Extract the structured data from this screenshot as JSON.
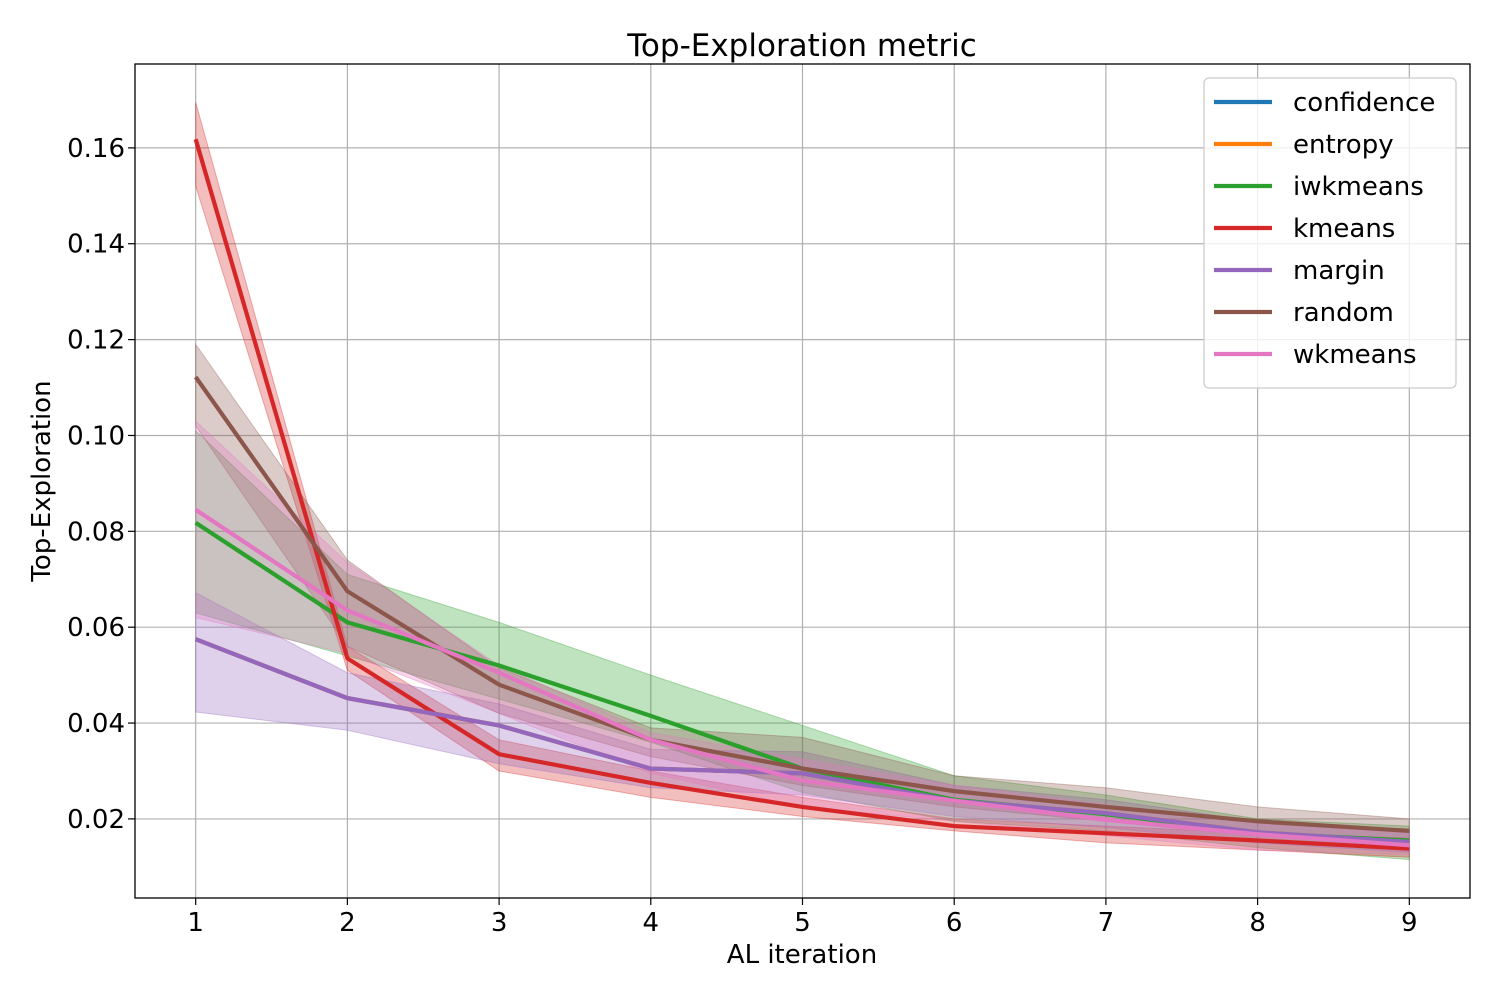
{
  "chart_data": {
    "type": "line",
    "title": "Top-Exploration metric",
    "xlabel": "AL iteration",
    "ylabel": "Top-Exploration",
    "x": [
      1,
      2,
      3,
      4,
      5,
      6,
      7,
      8,
      9
    ],
    "xticks": [
      "1",
      "2",
      "3",
      "4",
      "5",
      "6",
      "7",
      "8",
      "9"
    ],
    "yticks": [
      "0.02",
      "0.04",
      "0.06",
      "0.08",
      "0.10",
      "0.12",
      "0.14",
      "0.16"
    ],
    "xlim": [
      0.6,
      9.4
    ],
    "ylim": [
      0.0035,
      0.1775
    ],
    "grid": true,
    "legend_position": "top-right",
    "series": [
      {
        "name": "confidence",
        "color": "#1f77b4",
        "values": [
          0.0575,
          0.0452,
          0.0395,
          0.0305,
          0.0295,
          0.0238,
          0.0212,
          0.0172,
          0.0152
        ],
        "lower": [
          0.0423,
          0.0385,
          0.0315,
          0.0265,
          0.025,
          0.0205,
          0.0182,
          0.015,
          0.013
        ],
        "upper": [
          0.0672,
          0.0505,
          0.044,
          0.0345,
          0.034,
          0.027,
          0.024,
          0.0195,
          0.0175
        ],
        "band_opacity": 0.0
      },
      {
        "name": "entropy",
        "color": "#ff7f0e",
        "values": [
          0.0575,
          0.0452,
          0.0395,
          0.0305,
          0.0295,
          0.0238,
          0.0212,
          0.0172,
          0.0152
        ],
        "lower": [
          0.0423,
          0.0385,
          0.0315,
          0.0265,
          0.025,
          0.0205,
          0.0182,
          0.015,
          0.013
        ],
        "upper": [
          0.0672,
          0.0505,
          0.044,
          0.0345,
          0.034,
          0.027,
          0.024,
          0.0195,
          0.0175
        ],
        "band_opacity": 0.0
      },
      {
        "name": "iwkmeans",
        "color": "#2ca02c",
        "values": [
          0.0818,
          0.061,
          0.052,
          0.0415,
          0.0305,
          0.024,
          0.021,
          0.017,
          0.0155
        ],
        "lower": [
          0.063,
          0.054,
          0.045,
          0.036,
          0.0255,
          0.0195,
          0.0175,
          0.014,
          0.0115
        ],
        "upper": [
          0.101,
          0.071,
          0.061,
          0.05,
          0.0395,
          0.029,
          0.025,
          0.02,
          0.0185
        ],
        "band_opacity": 0.3
      },
      {
        "name": "kmeans",
        "color": "#d62728",
        "values": [
          0.1618,
          0.0535,
          0.0335,
          0.0275,
          0.0225,
          0.0185,
          0.017,
          0.0155,
          0.0138
        ],
        "lower": [
          0.152,
          0.051,
          0.03,
          0.0245,
          0.0205,
          0.0175,
          0.015,
          0.0135,
          0.012
        ],
        "upper": [
          0.1695,
          0.056,
          0.0365,
          0.03,
          0.0245,
          0.02,
          0.0185,
          0.017,
          0.016
        ],
        "band_opacity": 0.3
      },
      {
        "name": "margin",
        "color": "#9467bd",
        "values": [
          0.0575,
          0.0452,
          0.0395,
          0.0305,
          0.0295,
          0.0238,
          0.0212,
          0.0172,
          0.0152
        ],
        "lower": [
          0.0423,
          0.0385,
          0.0315,
          0.0265,
          0.025,
          0.0205,
          0.0182,
          0.015,
          0.013
        ],
        "upper": [
          0.0672,
          0.0505,
          0.044,
          0.0345,
          0.034,
          0.027,
          0.024,
          0.0195,
          0.0175
        ],
        "band_opacity": 0.3
      },
      {
        "name": "random",
        "color": "#8c564b",
        "values": [
          0.1122,
          0.0675,
          0.048,
          0.0365,
          0.0305,
          0.0258,
          0.0225,
          0.0195,
          0.0175
        ],
        "lower": [
          0.102,
          0.056,
          0.042,
          0.033,
          0.027,
          0.0225,
          0.0195,
          0.0165,
          0.015
        ],
        "upper": [
          0.119,
          0.074,
          0.0515,
          0.039,
          0.037,
          0.029,
          0.0265,
          0.0225,
          0.02
        ],
        "band_opacity": 0.3
      },
      {
        "name": "wkmeans",
        "color": "#e377c2",
        "values": [
          0.0845,
          0.0635,
          0.0505,
          0.0365,
          0.028,
          0.0238,
          0.0198,
          0.0168,
          0.0145
        ],
        "lower": [
          0.062,
          0.0545,
          0.042,
          0.0295,
          0.0225,
          0.0195,
          0.0165,
          0.0135,
          0.0125
        ],
        "upper": [
          0.103,
          0.0735,
          0.052,
          0.038,
          0.0325,
          0.027,
          0.023,
          0.019,
          0.017
        ],
        "band_opacity": 0.3
      }
    ]
  }
}
